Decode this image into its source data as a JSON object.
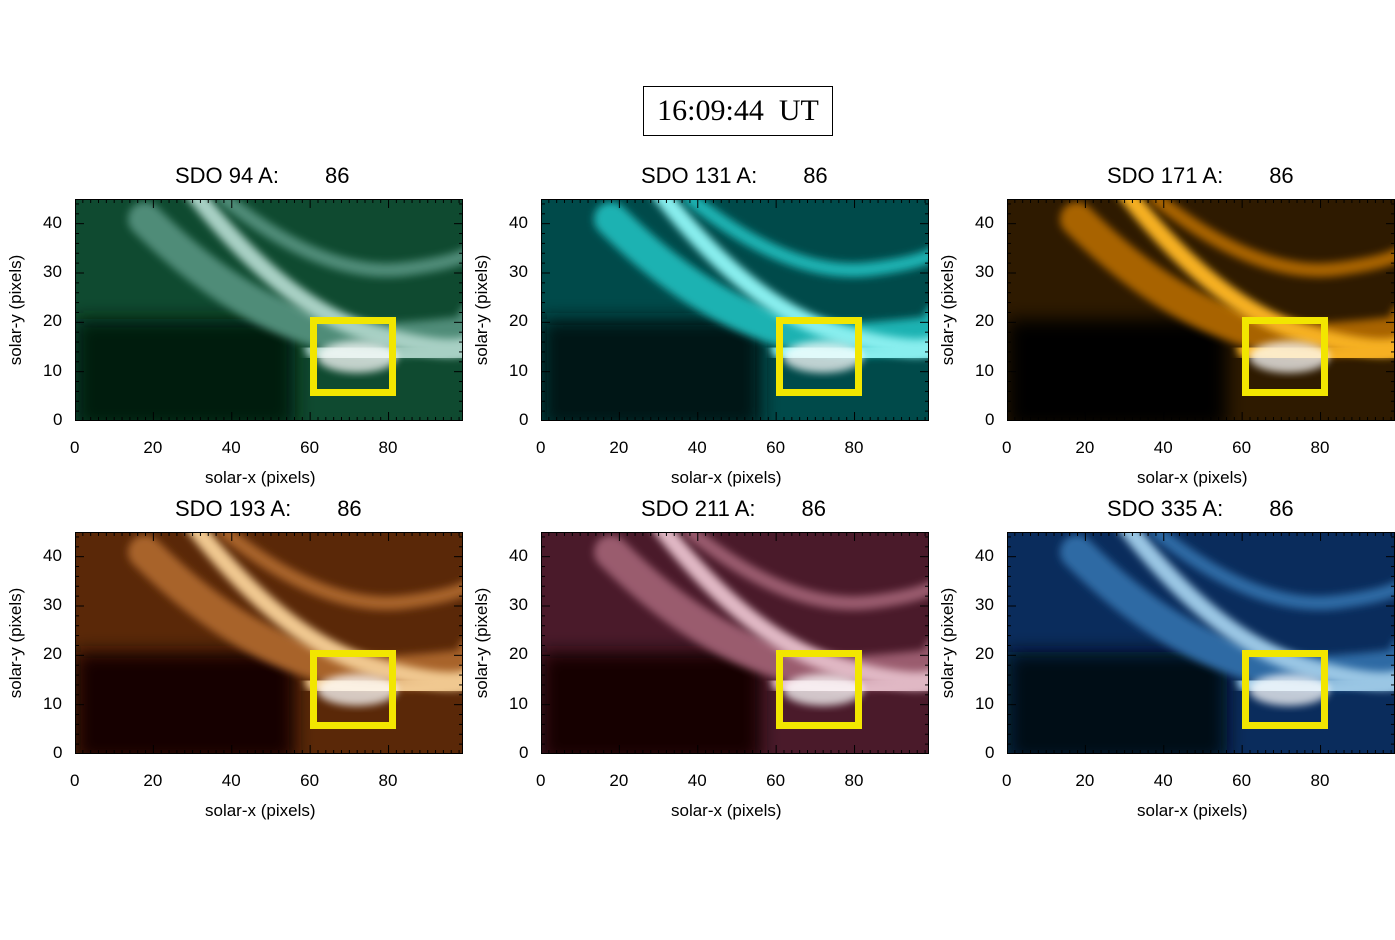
{
  "timestamp": "16:09:44  UT",
  "xlabel": "solar-x (pixels)",
  "ylabel": "solar-y (pixels)",
  "x_ticks": [
    "0",
    "20",
    "40",
    "60",
    "80"
  ],
  "y_ticks": [
    "40",
    "30",
    "20",
    "10",
    "0"
  ],
  "axis_ranges": {
    "x": [
      0,
      99
    ],
    "y": [
      0,
      45
    ]
  },
  "region_box": {
    "x": [
      60,
      82
    ],
    "y": [
      5,
      21
    ]
  },
  "roi_color": "#f2e600",
  "panels": [
    {
      "id": "94",
      "label": "SDO 94 A:",
      "frame": "86",
      "colormap": [
        "#031a10",
        "#0f4a30",
        "#4f8c78",
        "#a8d0c4",
        "#ffffff"
      ]
    },
    {
      "id": "131",
      "label": "SDO 131 A:",
      "frame": "86",
      "colormap": [
        "#001414",
        "#004a4a",
        "#1cb2b2",
        "#88eeee",
        "#ffffff"
      ]
    },
    {
      "id": "171",
      "label": "SDO 171 A:",
      "frame": "86",
      "colormap": [
        "#050300",
        "#2e1a00",
        "#a86400",
        "#f6b020",
        "#ffffff"
      ]
    },
    {
      "id": "193",
      "label": "SDO 193 A:",
      "frame": "86",
      "colormap": [
        "#150600",
        "#5a2808",
        "#a8642a",
        "#f0c890",
        "#ffffff"
      ]
    },
    {
      "id": "211",
      "label": "SDO 211 A:",
      "frame": "86",
      "colormap": [
        "#120406",
        "#4a1a2a",
        "#9a5c6e",
        "#e0b8c4",
        "#ffffff"
      ]
    },
    {
      "id": "335",
      "label": "SDO 335 A:",
      "frame": "86",
      "colormap": [
        "#020814",
        "#0a2c5c",
        "#2e6aa4",
        "#9ac6e4",
        "#ffffff"
      ]
    }
  ]
}
